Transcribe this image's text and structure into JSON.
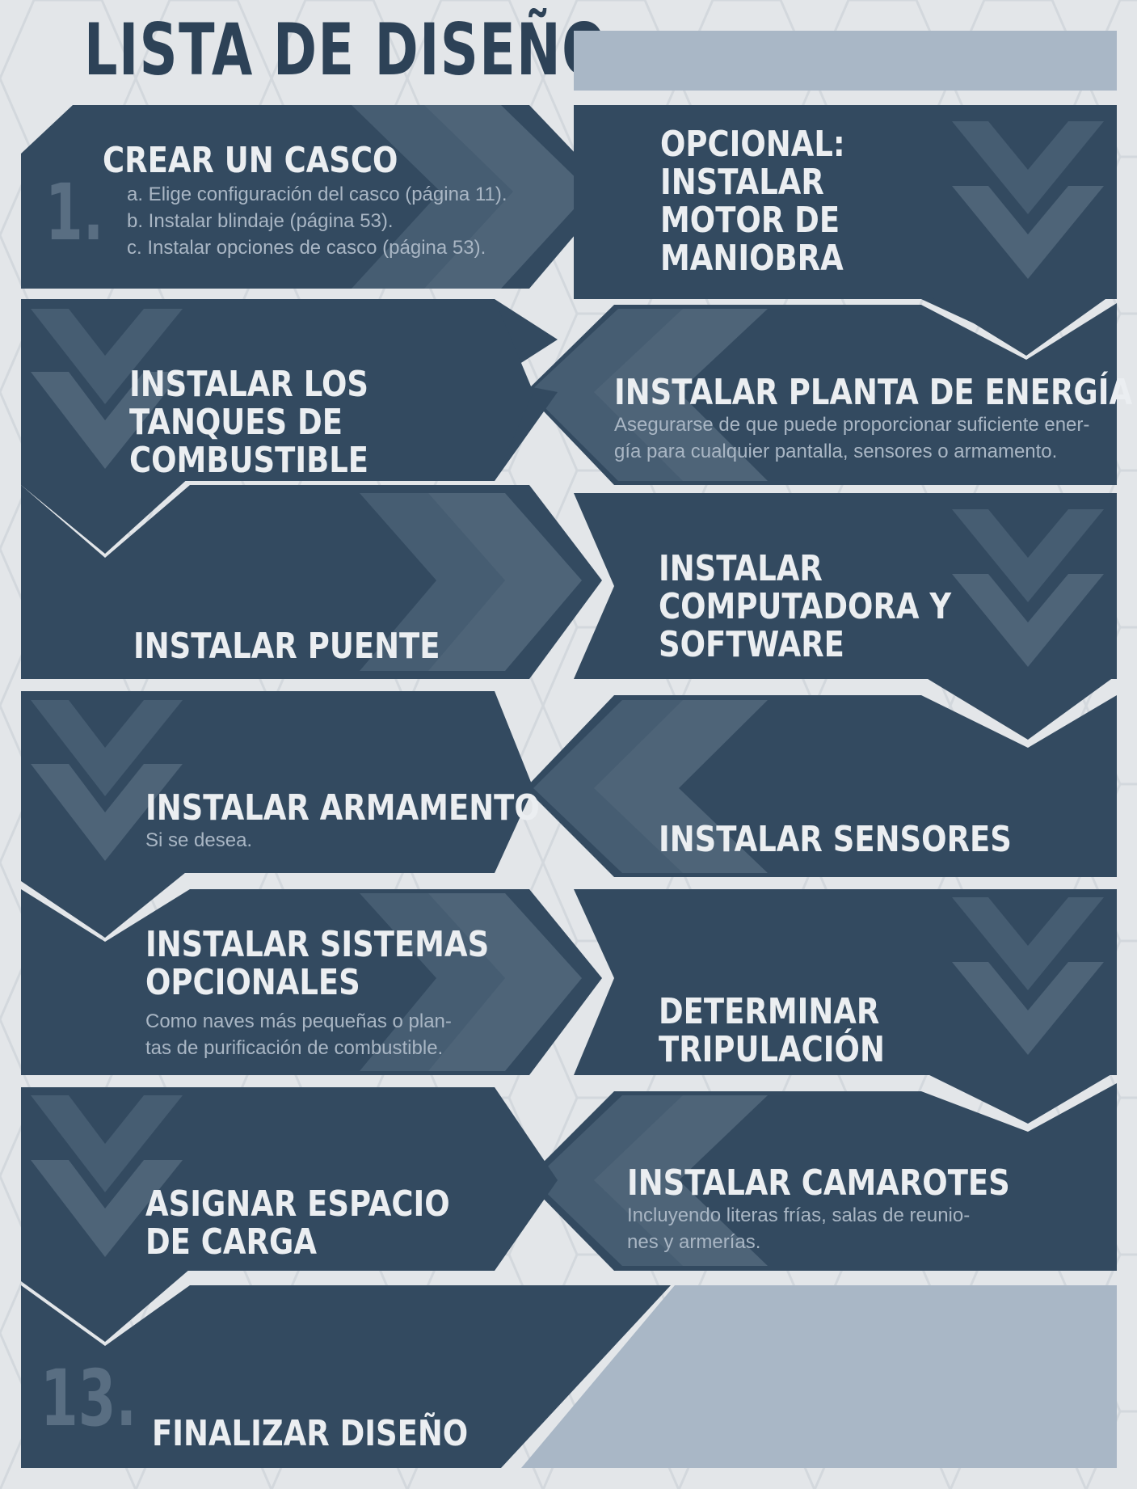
{
  "page": {
    "title": "LISTA DE DISEÑO",
    "colors": {
      "panel": "#334a60",
      "accent_light": "#a9b7c6",
      "heading": "#ebeef1",
      "subtext": "#a9b6c4",
      "background": "#e3e6e9"
    }
  },
  "steps": [
    {
      "number": "1.",
      "heading": "CREAR UN CASCO",
      "items": [
        "a. Elige configuración del casco (página 11).",
        "b. Instalar blindaje (página 53).",
        "c. Instalar opciones de casco (página 53)."
      ]
    },
    {
      "heading_lines": [
        "OPCIONAL:",
        "INSTALAR",
        "MOTOR DE",
        "MANIOBRA"
      ]
    },
    {
      "heading_lines": [
        "INSTALAR PLANTA DE ENERGÍA"
      ],
      "note_lines": [
        "Asegurarse de que puede proporcionar suficiente ener-",
        "gía para cualquier pantalla, sensores o armamento."
      ]
    },
    {
      "heading_lines": [
        "INSTALAR LOS",
        "TANQUES DE",
        "COMBUSTIBLE"
      ]
    },
    {
      "heading_lines": [
        "INSTALAR PUENTE"
      ]
    },
    {
      "heading_lines": [
        "INSTALAR",
        "COMPUTADORA Y",
        "SOFTWARE"
      ]
    },
    {
      "heading_lines": [
        "INSTALAR SENSORES"
      ]
    },
    {
      "heading_lines": [
        "INSTALAR ARMAMENTO"
      ],
      "note_lines": [
        "Si se desea."
      ]
    },
    {
      "heading_lines": [
        "INSTALAR SISTEMAS",
        "OPCIONALES"
      ],
      "note_lines": [
        "Como naves más pequeñas o plan-",
        "tas de purificación de combustible."
      ]
    },
    {
      "heading_lines": [
        "DETERMINAR",
        "TRIPULACIÓN"
      ]
    },
    {
      "heading_lines": [
        "INSTALAR CAMAROTES"
      ],
      "note_lines": [
        "Incluyendo literas frías, salas de reunio-",
        "nes y armerías."
      ]
    },
    {
      "heading_lines": [
        "ASIGNAR ESPACIO",
        "DE CARGA"
      ]
    },
    {
      "number": "13.",
      "heading": "FINALIZAR DISEÑO"
    }
  ]
}
